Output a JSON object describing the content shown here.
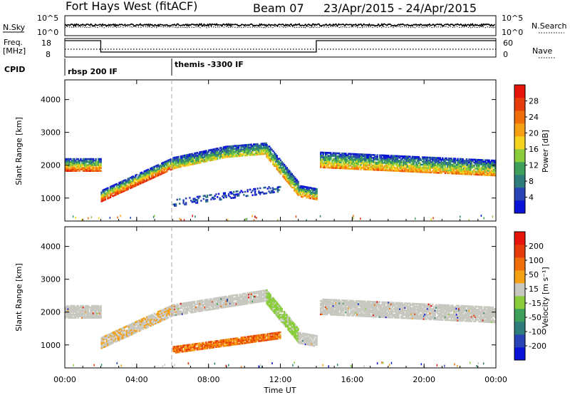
{
  "header": {
    "station": "Fort Hays West (fitACF)",
    "beam": "Beam 07",
    "dates": "23/Apr/2015 - 24/Apr/2015"
  },
  "strips": {
    "nsky_label": "N.Sky",
    "nsky_ticks": [
      "10^5",
      "10^0"
    ],
    "nsearch_label": "N.Search",
    "nsearch_ticks": [
      "10^5",
      "10^0"
    ],
    "freq_label_1": "Freq.",
    "freq_label_2": "[MHz]",
    "freq_ticks": [
      "18",
      "8"
    ],
    "nave_label": "Nave",
    "nave_ticks": [
      "60",
      "0"
    ],
    "cpid_label": "CPID",
    "cpid_segments": [
      {
        "label": "rbsp 200 IF",
        "start_h": 0
      },
      {
        "label": "themis -3300 IF",
        "start_h": 6
      }
    ],
    "freq_steps": [
      {
        "start_h": 0,
        "end_h": 2,
        "level": "high"
      },
      {
        "start_h": 2,
        "end_h": 14,
        "level": "low"
      },
      {
        "start_h": 14,
        "end_h": 24,
        "level": "high"
      }
    ]
  },
  "chart_data": [
    {
      "type": "heatmap",
      "name": "power-panel",
      "ylabel": "Slant Range [km]",
      "yticks": [
        1000,
        2000,
        3000,
        4000
      ],
      "ylim": [
        300,
        4600
      ],
      "xlim": [
        0,
        24
      ],
      "colorbar_label": "Power [dB]",
      "colorbar_ticks": [
        4,
        8,
        12,
        16,
        20,
        24,
        28
      ],
      "colorbar_range": [
        0,
        32
      ],
      "colors": [
        "#0a14d8",
        "#2844b4",
        "#2e7c7c",
        "#3ea05a",
        "#8acd3c",
        "#f5d21e",
        "#f5a014",
        "#f06e0a",
        "#e63c0a",
        "#e6140a"
      ],
      "bands": [
        {
          "x0": 0.0,
          "x1": 2.0,
          "center": [
            2000,
            2000
          ],
          "width": 380,
          "strength": 0.85
        },
        {
          "x0": 2.0,
          "x1": 6.0,
          "center": [
            1050,
            2050
          ],
          "width": 330,
          "strength": 0.9
        },
        {
          "x0": 6.0,
          "x1": 9.0,
          "center": [
            2050,
            2400
          ],
          "width": 320,
          "strength": 0.55
        },
        {
          "x0": 9.0,
          "x1": 11.2,
          "center": [
            2400,
            2500
          ],
          "width": 330,
          "strength": 0.5
        },
        {
          "x0": 11.2,
          "x1": 13.0,
          "center": [
            2450,
            1250
          ],
          "width": 420,
          "strength": 0.65
        },
        {
          "x0": 13.0,
          "x1": 14.0,
          "center": [
            1200,
            1100
          ],
          "width": 320,
          "strength": 0.75
        },
        {
          "x0": 14.2,
          "x1": 24.0,
          "center": [
            2150,
            1900
          ],
          "width": 460,
          "strength": 0.7
        },
        {
          "x0": 6.0,
          "x1": 12.0,
          "center": [
            850,
            1300
          ],
          "width": 220,
          "strength": 0.1
        }
      ]
    },
    {
      "type": "heatmap",
      "name": "velocity-panel",
      "ylabel": "Slant Range [km]",
      "yticks": [
        1000,
        2000,
        3000,
        4000
      ],
      "ylim": [
        300,
        4600
      ],
      "xlim": [
        0,
        24
      ],
      "colorbar_label": "Velocity [m s⁻¹]",
      "colorbar_ticks": [
        200,
        100,
        50,
        15,
        -15,
        -50,
        -100,
        -200
      ],
      "colors": [
        "#0a14d8",
        "#2844b4",
        "#2e7c7c",
        "#3ea05a",
        "#8acd3c",
        "#c8c8c0",
        "#f5a014",
        "#f06e0a",
        "#e63c0a",
        "#e6140a"
      ],
      "bands": [
        {
          "x0": 0.0,
          "x1": 2.0,
          "center": [
            2000,
            2000
          ],
          "width": 380,
          "tone": "grey"
        },
        {
          "x0": 2.0,
          "x1": 6.0,
          "center": [
            1050,
            2050
          ],
          "width": 330,
          "tone": "grey-orange"
        },
        {
          "x0": 6.0,
          "x1": 11.2,
          "center": [
            2050,
            2500
          ],
          "width": 330,
          "tone": "grey"
        },
        {
          "x0": 11.2,
          "x1": 13.0,
          "center": [
            2450,
            1250
          ],
          "width": 420,
          "tone": "green"
        },
        {
          "x0": 13.0,
          "x1": 14.0,
          "center": [
            1200,
            1100
          ],
          "width": 320,
          "tone": "grey"
        },
        {
          "x0": 14.2,
          "x1": 24.0,
          "center": [
            2150,
            1900
          ],
          "width": 460,
          "tone": "grey"
        },
        {
          "x0": 6.0,
          "x1": 12.0,
          "center": [
            850,
            1300
          ],
          "width": 220,
          "tone": "orange"
        }
      ]
    }
  ],
  "xaxis": {
    "label": "Time UT",
    "ticks": [
      "00:00",
      "04:00",
      "08:00",
      "12:00",
      "16:00",
      "20:00",
      "00:00"
    ]
  }
}
